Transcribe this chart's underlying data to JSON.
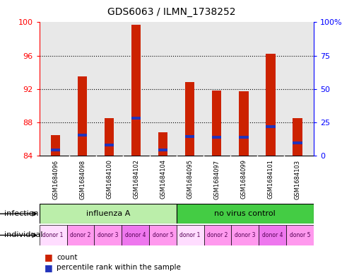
{
  "title": "GDS6063 / ILMN_1738252",
  "samples": [
    "GSM1684096",
    "GSM1684098",
    "GSM1684100",
    "GSM1684102",
    "GSM1684104",
    "GSM1684095",
    "GSM1684097",
    "GSM1684099",
    "GSM1684101",
    "GSM1684103"
  ],
  "red_heights": [
    86.5,
    93.5,
    88.5,
    99.7,
    86.8,
    92.8,
    91.8,
    91.7,
    96.2,
    88.5
  ],
  "blue_heights": [
    84.7,
    86.5,
    85.3,
    88.5,
    84.7,
    86.3,
    86.2,
    86.2,
    87.5,
    85.5
  ],
  "y_min": 84,
  "y_max": 100,
  "y_ticks_left": [
    84,
    88,
    92,
    96,
    100
  ],
  "y_ticks_right_vals": [
    0,
    25,
    50,
    75,
    100
  ],
  "y_ticks_right_pos": [
    84,
    88,
    92,
    96,
    100
  ],
  "infection_groups": [
    {
      "label": "influenza A",
      "start": 0,
      "end": 5,
      "color": "#bbeeaa"
    },
    {
      "label": "no virus control",
      "start": 5,
      "end": 10,
      "color": "#44cc44"
    }
  ],
  "individual_labels": [
    "donor 1",
    "donor 2",
    "donor 3",
    "donor 4",
    "donor 5",
    "donor 1",
    "donor 2",
    "donor 3",
    "donor 4",
    "donor 5"
  ],
  "individual_shades": [
    "#ffddff",
    "#ff99ee",
    "#ff99ee",
    "#ee77ee",
    "#ff99ee",
    "#ffddff",
    "#ff99ee",
    "#ff99ee",
    "#ee77ee",
    "#ff99ee"
  ],
  "bar_color_red": "#cc2200",
  "bar_color_blue": "#2233bb",
  "bar_width": 0.35,
  "plot_bg": "#e8e8e8",
  "sample_bg": "#cccccc"
}
